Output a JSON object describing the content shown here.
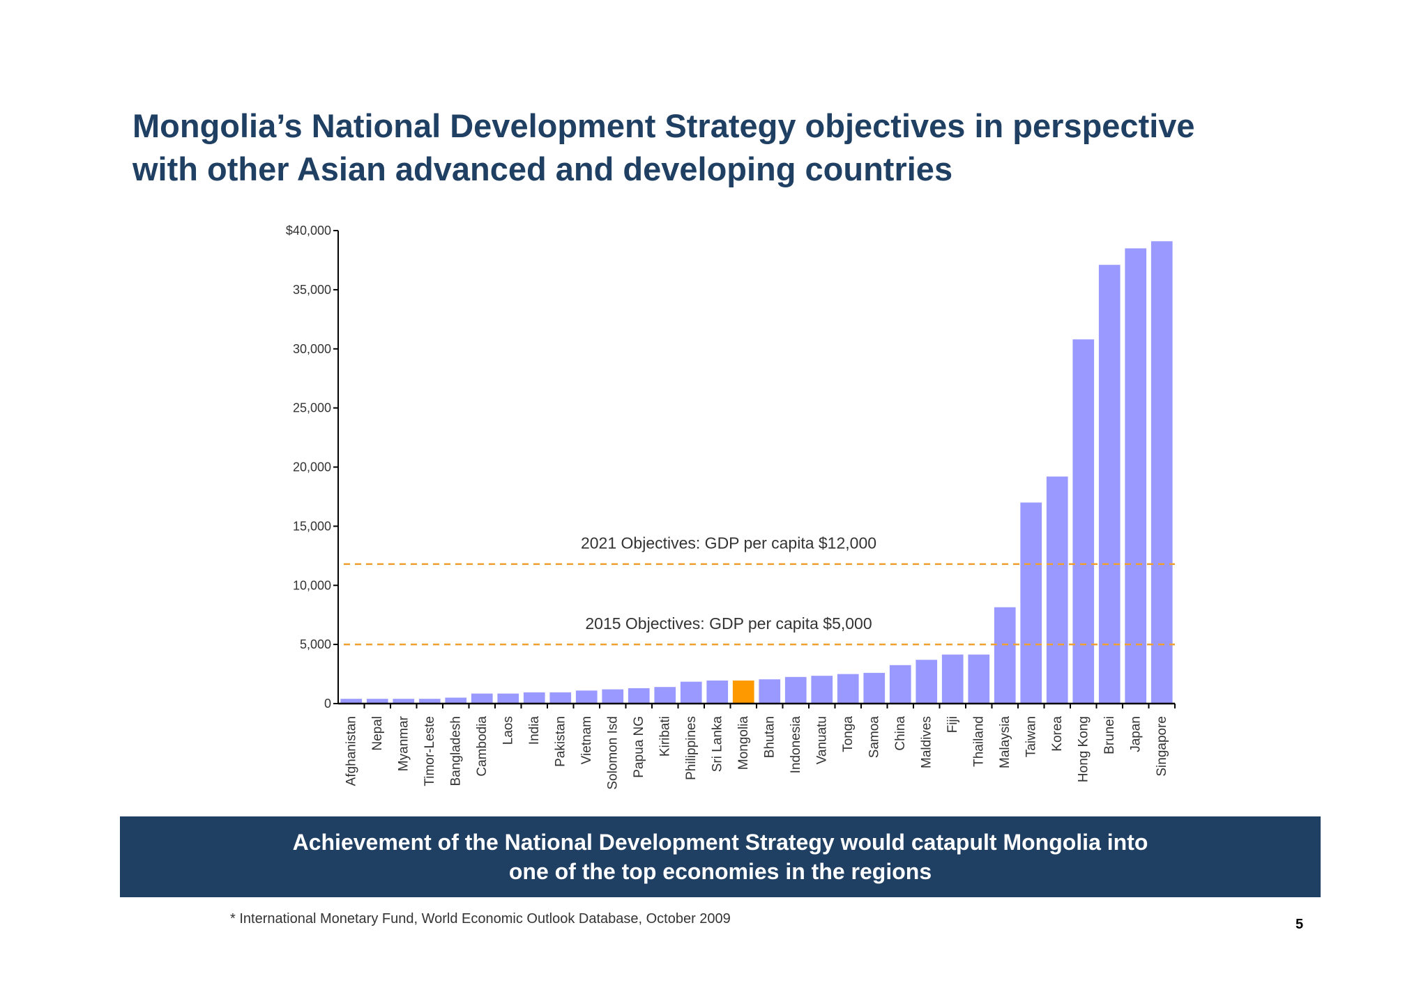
{
  "title": {
    "line1": "Mongolia’s National Development Strategy objectives in perspective",
    "line2": "with other Asian advanced and developing countries"
  },
  "banner": {
    "line1": "Achievement of the National Development Strategy would catapult Mongolia into",
    "line2": "one of the top economies in the regions"
  },
  "footnote": "*  International Monetary Fund, World Economic Outlook Database, October 2009",
  "page_number": "5",
  "colors": {
    "bar": "#9999ff",
    "highlight": "#ff9900",
    "objective_line": "#f0a030",
    "title": "#1f3f63"
  },
  "chart_data": {
    "type": "bar",
    "ylim": [
      0,
      40000
    ],
    "y_ticks": [
      {
        "value": 0,
        "label": "0"
      },
      {
        "value": 5000,
        "label": "5,000"
      },
      {
        "value": 10000,
        "label": "10,000"
      },
      {
        "value": 15000,
        "label": "15,000"
      },
      {
        "value": 20000,
        "label": "20,000"
      },
      {
        "value": 25000,
        "label": "25,000"
      },
      {
        "value": 30000,
        "label": "30,000"
      },
      {
        "value": 35000,
        "label": "35,000"
      },
      {
        "value": 40000,
        "label": "$40,000"
      }
    ],
    "categories": [
      "Afghanistan",
      "Nepal",
      "Myanmar",
      "Timor-Leste",
      "Bangladesh",
      "Cambodia",
      "Laos",
      "India",
      "Pakistan",
      "Vietnam",
      "Solomon Isd",
      "Papua NG",
      "Kiribati",
      "Philippines",
      "Sri Lanka",
      "Mongolia",
      "Bhutan",
      "Indonesia",
      "Vanuatu",
      "Tonga",
      "Samoa",
      "China",
      "Maldives",
      "Fiji",
      "Thailand",
      "Malaysia",
      "Taiwan",
      "Korea",
      "Hong Kong",
      "Brunei",
      "Japan",
      "Singapore"
    ],
    "values": [
      400,
      400,
      400,
      400,
      500,
      850,
      850,
      950,
      950,
      1100,
      1200,
      1300,
      1400,
      1850,
      1950,
      1950,
      2050,
      2250,
      2350,
      2500,
      2600,
      3250,
      3700,
      4150,
      4150,
      8150,
      17000,
      19200,
      30800,
      37100,
      38500,
      39100
    ],
    "highlight": "Mongolia",
    "reference_lines": [
      {
        "value": 11800,
        "label": "2021 Objectives:  GDP per capita $12,000"
      },
      {
        "value": 5000,
        "label": "2015 Objectives:  GDP per capita $5,000"
      }
    ]
  }
}
